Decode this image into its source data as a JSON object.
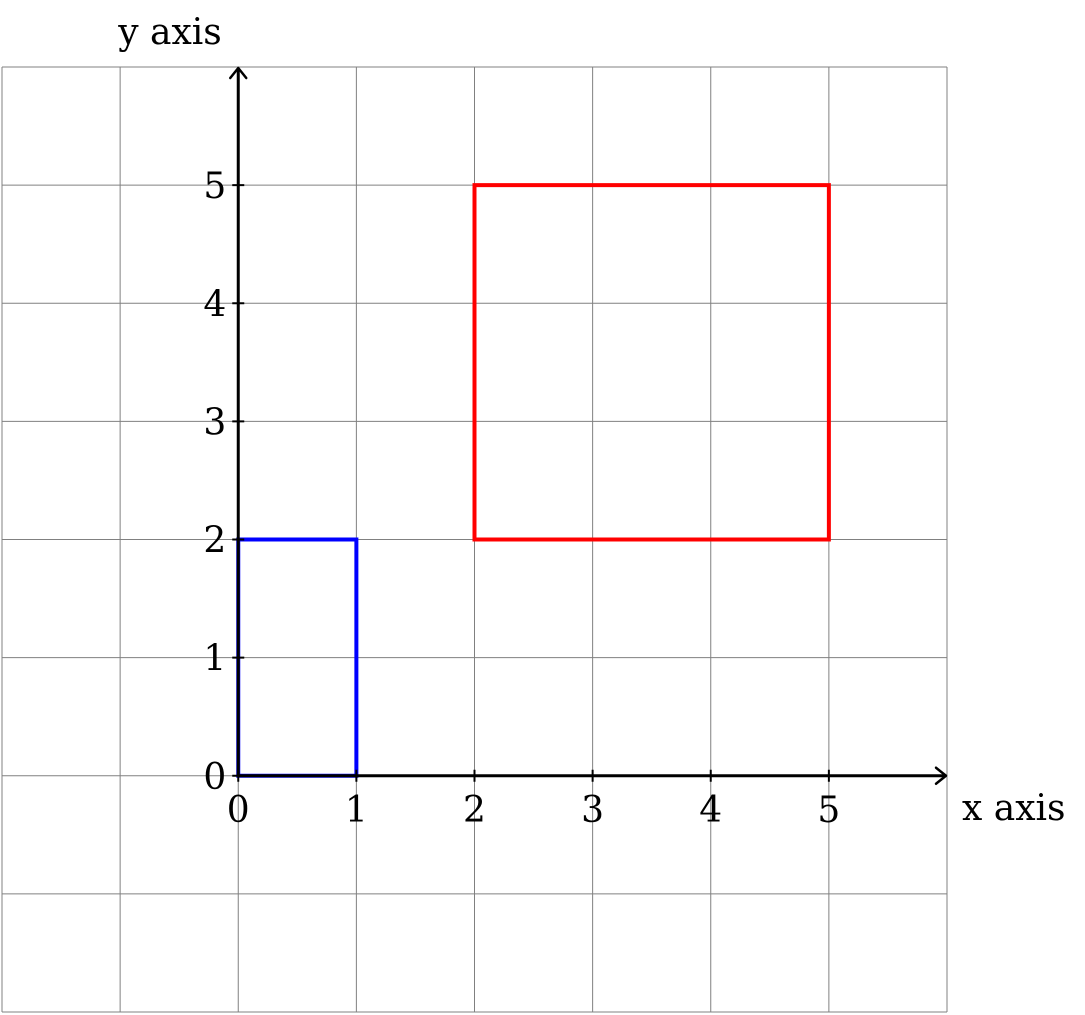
{
  "chart_data": {
    "type": "scatter",
    "xlabel": "x axis",
    "ylabel": "y axis",
    "xlim": [
      -2,
      6
    ],
    "ylim": [
      -2,
      6
    ],
    "grid": true,
    "x_ticks": [
      0,
      1,
      2,
      3,
      4,
      5
    ],
    "y_ticks": [
      0,
      1,
      2,
      3,
      4,
      5
    ],
    "x_tick_labels": [
      "0",
      "1",
      "2",
      "3",
      "4",
      "5"
    ],
    "y_tick_labels": [
      "0",
      "1",
      "2",
      "3",
      "4",
      "5"
    ],
    "rectangles": [
      {
        "x": [
          0,
          1
        ],
        "y": [
          0,
          2
        ],
        "color": "#0000ff"
      },
      {
        "x": [
          2,
          5
        ],
        "y": [
          2,
          5
        ],
        "color": "#ff0000"
      }
    ]
  },
  "colors": {
    "grid": "#808080",
    "axis": "#000000"
  }
}
